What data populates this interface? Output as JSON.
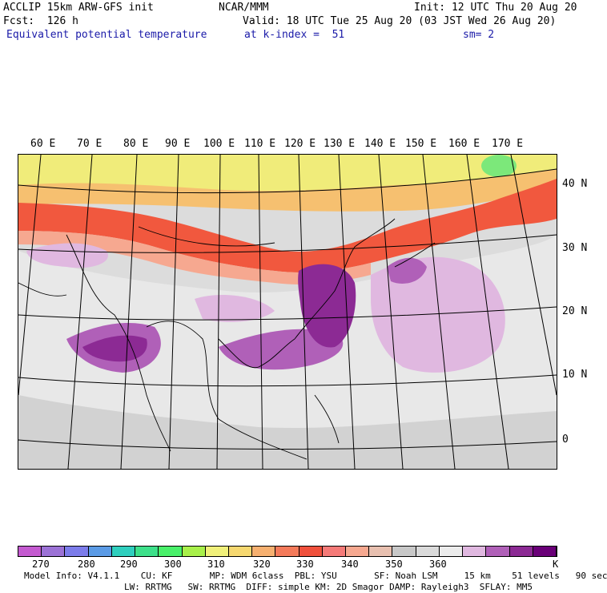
{
  "header": {
    "model": "ACCLIP 15km ARW-GFS init",
    "org": "NCAR/MMM",
    "init": "Init: 12 UTC Thu 20 Aug 20",
    "fcst": "Fcst:  126 h",
    "valid": "Valid: 18 UTC Tue 25 Aug 20 (03 JST Wed 26 Aug 20)",
    "field": "Equivalent potential temperature",
    "level": "at k-index =  51",
    "smooth": "sm= 2"
  },
  "lon_labels": [
    "60 E",
    "70 E",
    "80 E",
    "90 E",
    "100 E",
    "110 E",
    "120 E",
    "130 E",
    "140 E",
    "150 E",
    "160 E",
    "170 E"
  ],
  "lat_labels": [
    "40 N",
    "30 N",
    "20 N",
    "10 N",
    "0"
  ],
  "colorbar": {
    "colors": [
      "#c45ad0",
      "#9c72d6",
      "#7c7cea",
      "#5b9be6",
      "#2fcfbe",
      "#3de08a",
      "#49f06a",
      "#a8f04a",
      "#f0f07a",
      "#f6d870",
      "#f6b070",
      "#f47a5a",
      "#f0503c",
      "#f57a78",
      "#f6a890",
      "#e8c0b0",
      "#c8c8c8",
      "#dadada",
      "#ececec",
      "#e0b8e0",
      "#b060b8",
      "#8c2a94",
      "#6a0078"
    ],
    "labels": [
      "270",
      "280",
      "290",
      "300",
      "310",
      "320",
      "330",
      "340",
      "350",
      "360",
      "K"
    ],
    "unit": "K"
  },
  "footer": {
    "line1": "Model Info: V4.1.1    CU: KF       MP: WDM 6class  PBL: YSU       SF: Noah LSM     15 km    51 levels   90 sec",
    "line2": "LW: RRTMG   SW: RRTMG  DIFF: simple KM: 2D Smagor DAMP: Rayleigh3  SFLAY: MM5"
  }
}
